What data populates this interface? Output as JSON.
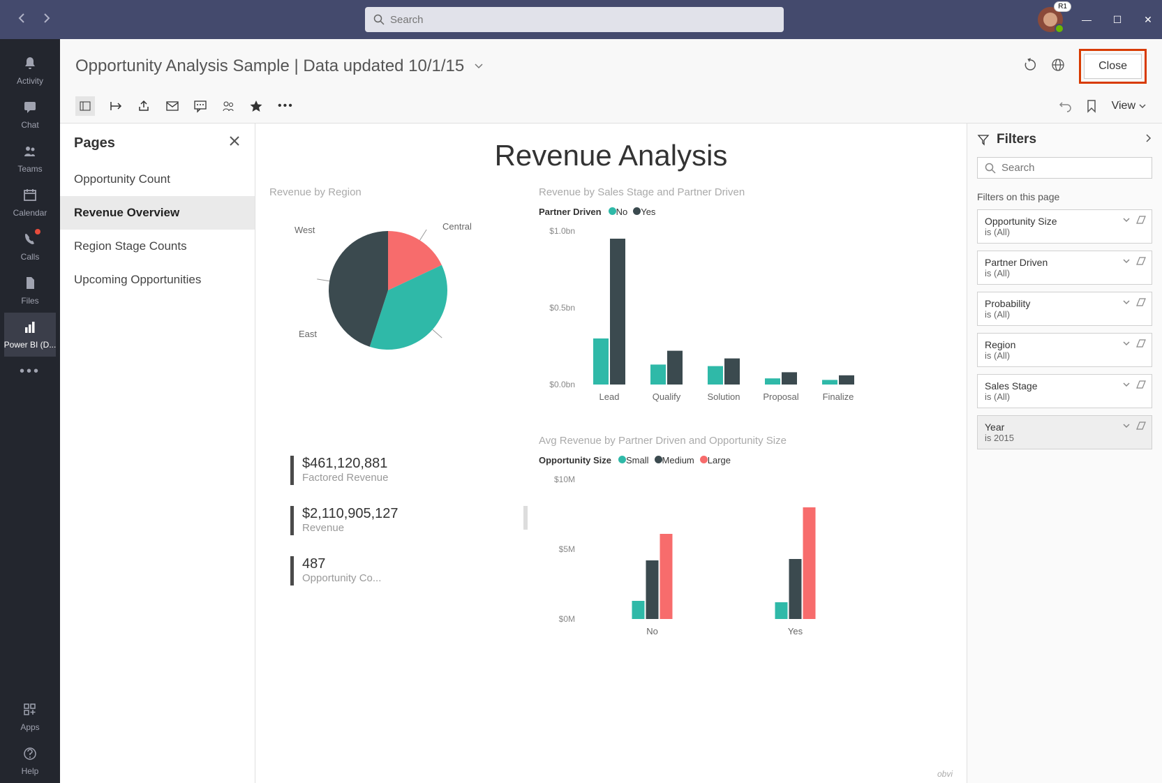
{
  "titlebar": {
    "search_placeholder": "Search",
    "avatar_badge": "R1",
    "avatar_color": "#8b4a3a"
  },
  "leftnav": {
    "items": [
      {
        "label": "Activity",
        "icon": "bell"
      },
      {
        "label": "Chat",
        "icon": "chat"
      },
      {
        "label": "Teams",
        "icon": "teams"
      },
      {
        "label": "Calendar",
        "icon": "calendar"
      },
      {
        "label": "Calls",
        "icon": "phone",
        "dot": true
      },
      {
        "label": "Files",
        "icon": "file"
      },
      {
        "label": "Power BI (D...",
        "icon": "powerbi",
        "active": true
      }
    ],
    "bottom": [
      {
        "label": "Apps",
        "icon": "apps"
      },
      {
        "label": "Help",
        "icon": "help"
      }
    ]
  },
  "header": {
    "title": "Opportunity Analysis Sample  |  Data updated 10/1/15",
    "close_label": "Close",
    "view_label": "View"
  },
  "pages": {
    "title": "Pages",
    "items": [
      "Opportunity Count",
      "Revenue Overview",
      "Region Stage Counts",
      "Upcoming Opportunities"
    ],
    "active_index": 1
  },
  "report": {
    "title": "Revenue Analysis",
    "pie": {
      "title": "Revenue by Region",
      "labels": [
        "West",
        "Central",
        "East"
      ],
      "values": [
        18,
        37,
        45
      ],
      "colors": [
        "#f76c6c",
        "#2fb9a8",
        "#3b4a4f"
      ]
    },
    "bar1": {
      "title": "Revenue by Sales Stage and Partner Driven",
      "legend_title": "Partner Driven",
      "series": [
        {
          "name": "No",
          "color": "#2fb9a8"
        },
        {
          "name": "Yes",
          "color": "#3b4a4f"
        }
      ],
      "categories": [
        "Lead",
        "Qualify",
        "Solution",
        "Proposal",
        "Finalize"
      ],
      "values_no": [
        0.3,
        0.13,
        0.12,
        0.04,
        0.03
      ],
      "values_yes": [
        0.95,
        0.22,
        0.17,
        0.08,
        0.06
      ],
      "y_ticks": [
        "$0.0bn",
        "$0.5bn",
        "$1.0bn"
      ],
      "y_max": 1.0
    },
    "kpis": [
      {
        "value": "$461,120,881",
        "label": "Factored Revenue"
      },
      {
        "value": "$2,110,905,127",
        "label": "Revenue"
      },
      {
        "value": "487",
        "label": "Opportunity Co..."
      }
    ],
    "bar2": {
      "title": "Avg Revenue by Partner Driven and Opportunity Size",
      "legend_title": "Opportunity Size",
      "series": [
        {
          "name": "Small",
          "color": "#2fb9a8"
        },
        {
          "name": "Medium",
          "color": "#3b4a4f"
        },
        {
          "name": "Large",
          "color": "#f76c6c"
        }
      ],
      "categories": [
        "No",
        "Yes"
      ],
      "values": [
        [
          1.3,
          4.2,
          6.1
        ],
        [
          1.2,
          4.3,
          8.0
        ]
      ],
      "y_ticks": [
        "$0M",
        "$5M",
        "$10M"
      ],
      "y_max": 10
    },
    "watermark": "obvi"
  },
  "filters": {
    "title": "Filters",
    "search_placeholder": "Search",
    "section_title": "Filters on this page",
    "items": [
      {
        "name": "Opportunity Size",
        "value": "is (All)"
      },
      {
        "name": "Partner Driven",
        "value": "is (All)"
      },
      {
        "name": "Probability",
        "value": "is (All)"
      },
      {
        "name": "Region",
        "value": "is (All)"
      },
      {
        "name": "Sales Stage",
        "value": "is (All)"
      },
      {
        "name": "Year",
        "value": "is 2015",
        "active": true
      }
    ]
  },
  "colors": {
    "teal": "#2fb9a8",
    "dark": "#3b4a4f",
    "coral": "#f76c6c"
  }
}
